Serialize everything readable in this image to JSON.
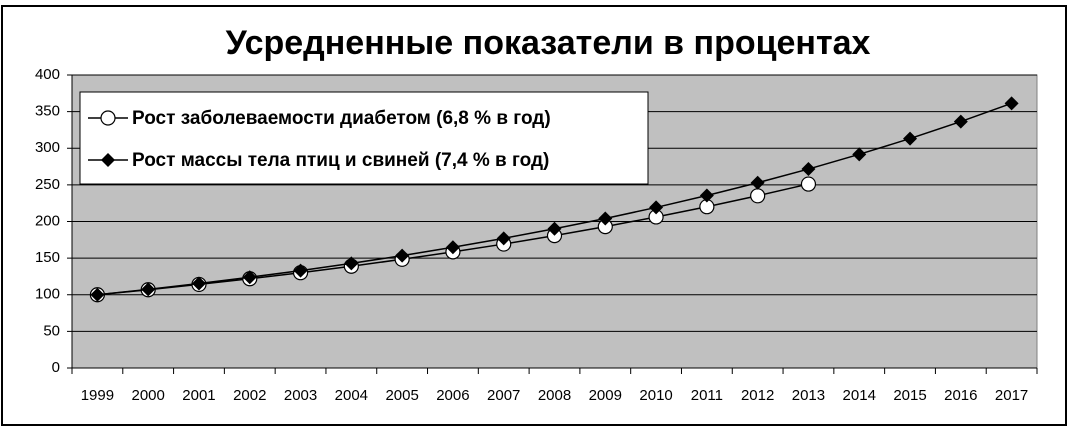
{
  "chart_data": {
    "type": "line",
    "title": "Усредненные показатели в процентах",
    "categories": [
      "1999",
      "2000",
      "2001",
      "2002",
      "2003",
      "2004",
      "2005",
      "2006",
      "2007",
      "2008",
      "2009",
      "2010",
      "2011",
      "2012",
      "2013",
      "2014",
      "2015",
      "2016",
      "2017"
    ],
    "series": [
      {
        "name": "Рост заболеваемости диабетом (6,8 % в год)",
        "color": "#000000",
        "marker": "circle",
        "values": [
          100,
          106.8,
          114.1,
          121.8,
          130.1,
          138.9,
          148.4,
          158.5,
          169.2,
          180.7,
          193.0,
          206.2,
          220.2,
          235.1,
          251.1,
          null,
          null,
          null,
          null
        ]
      },
      {
        "name": "Рост массы тела птиц и свиней (7,4 % в год)",
        "color": "#000000",
        "marker": "diamond",
        "values": [
          100,
          107.4,
          115.3,
          123.9,
          133.0,
          142.9,
          153.4,
          164.8,
          177.0,
          190.1,
          204.1,
          219.2,
          235.5,
          252.9,
          271.6,
          291.7,
          313.2,
          336.4,
          361.3
        ]
      }
    ],
    "ylim": [
      0,
      400
    ],
    "yticks": [
      0,
      50,
      100,
      150,
      200,
      250,
      300,
      350,
      400
    ],
    "grid": true,
    "plot_background": "#c0c0c0",
    "legend": "upper left"
  }
}
